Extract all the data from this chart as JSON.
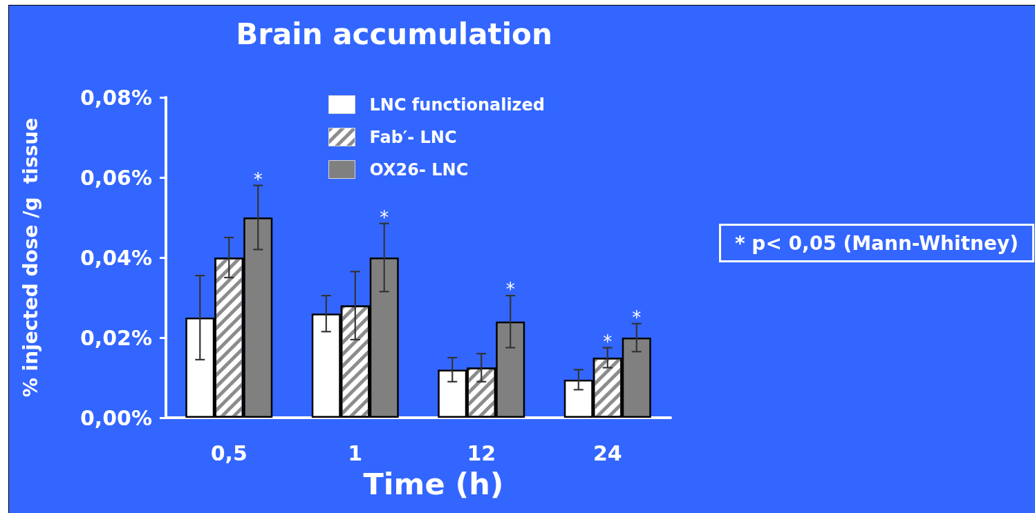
{
  "chart_data": {
    "type": "bar",
    "title": "Brain accumulation",
    "xlabel": "Time (h)",
    "ylabel": "% injected dose /g  tissue",
    "categories": [
      "0,5",
      "1",
      "12",
      "24"
    ],
    "series": [
      {
        "name": "LNC functionalized",
        "color": "#ffffff",
        "values": [
          0.025,
          0.026,
          0.012,
          0.0095
        ],
        "errors": [
          0.0105,
          0.0045,
          0.003,
          0.0025
        ]
      },
      {
        "name": "Fab′- LNC",
        "color": "#ffffff",
        "values": [
          0.04,
          0.028,
          0.0125,
          0.015
        ],
        "errors": [
          0.005,
          0.0085,
          0.0035,
          0.0025
        ],
        "value_labels": [
          null,
          null,
          null,
          "*"
        ]
      },
      {
        "name": "OX26- LNC",
        "color": "#808080",
        "values": [
          0.05,
          0.04,
          0.024,
          0.02
        ],
        "errors": [
          0.008,
          0.0085,
          0.0065,
          0.0035
        ],
        "value_labels": [
          "*",
          "*",
          "*",
          "*"
        ]
      }
    ],
    "ylim": [
      0,
      0.08
    ],
    "yticks": [
      {
        "value": 0,
        "label": "0,00%"
      },
      {
        "value": 0.02,
        "label": "0,02%"
      },
      {
        "value": 0.04,
        "label": "0,04%"
      },
      {
        "value": 0.06,
        "label": "0,06%"
      },
      {
        "value": 0.08,
        "label": "0,08%"
      }
    ],
    "grid": false,
    "legend": "top",
    "annotations": [
      "* p< 0,05 (Mann-Whitney)"
    ]
  }
}
